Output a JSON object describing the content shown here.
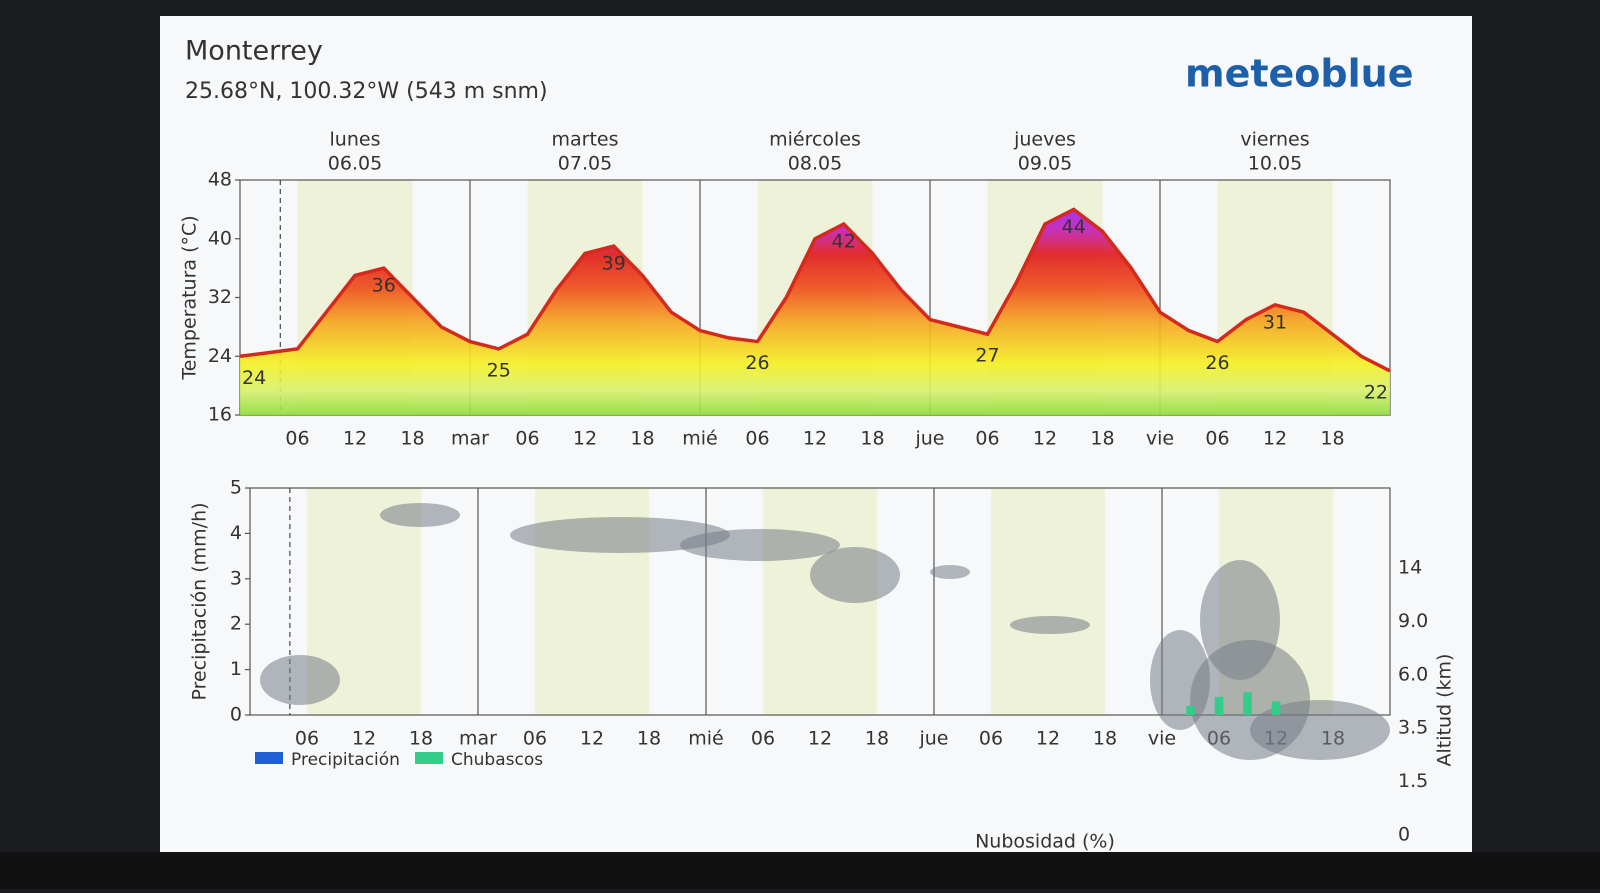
{
  "header": {
    "location": "Monterrey",
    "coords": "25.68°N, 100.32°W (543 m snm)",
    "brand": "meteoblue"
  },
  "chart_data": [
    {
      "type": "line",
      "y_label": "Temperatura (°C)",
      "color": "#d42a1c",
      "days": [
        {
          "name": "lunes",
          "date": "06.05"
        },
        {
          "name": "martes",
          "date": "07.05"
        },
        {
          "name": "miércoles",
          "date": "08.05"
        },
        {
          "name": "jueves",
          "date": "09.05"
        },
        {
          "name": "viernes",
          "date": "10.05"
        }
      ],
      "categories": [
        null,
        null,
        "06",
        null,
        "12",
        null,
        "18",
        null,
        "mar",
        null,
        "06",
        null,
        "12",
        null,
        "18",
        null,
        "mié",
        null,
        "06",
        null,
        "12",
        null,
        "18",
        null,
        "jue",
        null,
        "06",
        null,
        "12",
        null,
        "18",
        null,
        "vie",
        null,
        "06",
        null,
        "12",
        null,
        "18",
        null,
        null
      ],
      "values": [
        24,
        24.5,
        25,
        30,
        35,
        36,
        32,
        28,
        26,
        25,
        27,
        33,
        38,
        39,
        35,
        30,
        27.5,
        26.5,
        26,
        32,
        40,
        42,
        38,
        33,
        29,
        28,
        27,
        34,
        42,
        44,
        41,
        36,
        30,
        27.5,
        26,
        29,
        31,
        30,
        27,
        24,
        22
      ],
      "ylim": [
        16,
        48
      ],
      "yticks": [
        16,
        24,
        32,
        40,
        48
      ]
    },
    {
      "type": "bar",
      "y_label": "Precipitación (mm/h)",
      "y2_label": "Altitud (km)",
      "x_label": "Nubosidad (%)",
      "categories": [
        null,
        null,
        "06",
        null,
        "12",
        null,
        "18",
        null,
        "mar",
        null,
        "06",
        null,
        "12",
        null,
        "18",
        null,
        "mié",
        null,
        "06",
        null,
        "12",
        null,
        "18",
        null,
        "jue",
        null,
        "06",
        null,
        "12",
        null,
        "18",
        null,
        "vie",
        null,
        "06",
        null,
        "12",
        null,
        "18",
        null,
        null
      ],
      "series": [
        {
          "name": "Precipitación",
          "color": "#1f5fd6",
          "values": [
            0,
            0,
            0,
            0,
            0,
            0,
            0,
            0,
            0,
            0,
            0,
            0,
            0,
            0,
            0,
            0,
            0,
            0,
            0,
            0,
            0,
            0,
            0,
            0,
            0,
            0,
            0,
            0,
            0,
            0,
            0,
            0,
            0,
            0,
            0,
            0,
            0,
            0,
            0,
            0,
            0
          ]
        },
        {
          "name": "Chubascos",
          "color": "#33cc88",
          "values": [
            0,
            0,
            0,
            0,
            0,
            0,
            0,
            0,
            0,
            0,
            0,
            0,
            0,
            0,
            0,
            0,
            0,
            0,
            0,
            0,
            0,
            0,
            0,
            0,
            0,
            0,
            0,
            0,
            0,
            0,
            0,
            0,
            0,
            0.2,
            0.4,
            0.5,
            0.3,
            0,
            0,
            0,
            0
          ]
        }
      ],
      "ylim": [
        0,
        5
      ],
      "yticks": [
        0,
        1,
        2,
        3,
        4,
        5
      ],
      "altitude_levels": [
        "0",
        "1.5",
        "3.5",
        "6.0",
        "9.0",
        "14"
      ]
    }
  ]
}
